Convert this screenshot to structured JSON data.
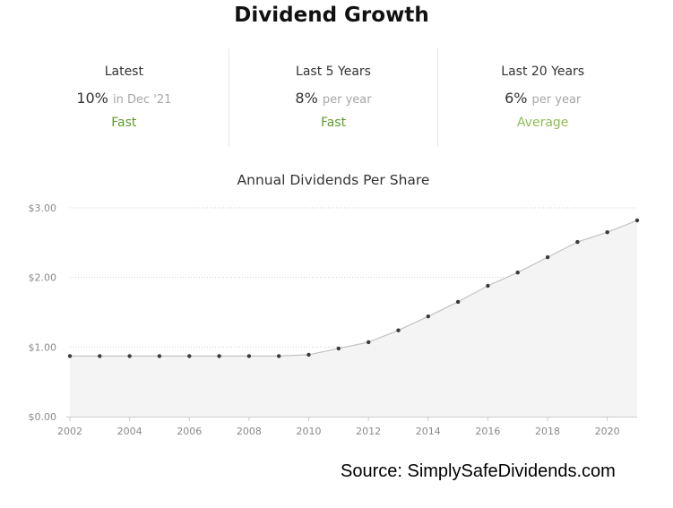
{
  "title": "Dividend Growth",
  "stats": [
    {
      "label": "Latest",
      "value": "10%",
      "suffix": "in Dec '21",
      "rating": "Fast",
      "rating_color": "#5e9a2b"
    },
    {
      "label": "Last 5 Years",
      "value": "8%",
      "suffix": "per year",
      "rating": "Fast",
      "rating_color": "#5e9a2b"
    },
    {
      "label": "Last 20 Years",
      "value": "6%",
      "suffix": "per year",
      "rating": "Average",
      "rating_color": "#8fbe52"
    }
  ],
  "chart_data": {
    "type": "area",
    "title": "Annual Dividends Per Share",
    "xlabel": "",
    "ylabel": "",
    "x": [
      2002,
      2003,
      2004,
      2005,
      2006,
      2007,
      2008,
      2009,
      2010,
      2011,
      2012,
      2013,
      2014,
      2015,
      2016,
      2017,
      2018,
      2019,
      2020,
      2021
    ],
    "series": [
      {
        "values": [
          0.87,
          0.87,
          0.87,
          0.87,
          0.87,
          0.87,
          0.87,
          0.87,
          0.89,
          0.98,
          1.07,
          1.24,
          1.44,
          1.65,
          1.88,
          2.07,
          2.29,
          2.51,
          2.65,
          2.82
        ]
      }
    ],
    "xlim": [
      2002,
      2021
    ],
    "ylim": [
      0,
      3
    ],
    "x_ticks": [
      "2002",
      "2004",
      "2006",
      "2008",
      "2010",
      "2012",
      "2014",
      "2016",
      "2018",
      "2020"
    ],
    "y_ticks": [
      "$0.00",
      "$1.00",
      "$2.00",
      "$3.00"
    ],
    "y_tick_values": [
      0,
      1,
      2,
      3
    ],
    "grid": true,
    "legend": "none",
    "colors": {
      "line": "#c2c2c2",
      "fill": "#f4f4f4",
      "point": "#3a3a3a",
      "axis": "#cccccc",
      "grid": "#cfcfcf",
      "tick_label": "#8a8a8a"
    }
  },
  "source": "Source: SimplySafeDividends.com"
}
